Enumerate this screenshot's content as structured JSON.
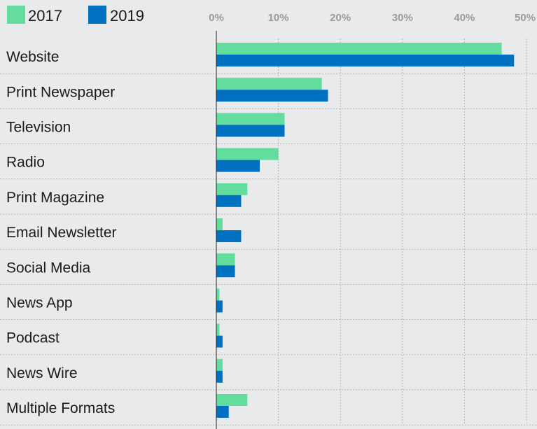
{
  "chart_data": {
    "type": "bar",
    "orientation": "horizontal",
    "categories": [
      "Website",
      "Print Newspaper",
      "Television",
      "Radio",
      "Print Magazine",
      "Email Newsletter",
      "Social Media",
      "News App",
      "Podcast",
      "News Wire",
      "Multiple Formats"
    ],
    "series": [
      {
        "name": "2017",
        "color": "#62dd9e",
        "values": [
          46,
          17,
          11,
          10,
          5,
          1,
          3,
          0.5,
          0.5,
          1,
          5
        ]
      },
      {
        "name": "2019",
        "color": "#0070c0",
        "values": [
          48,
          18,
          11,
          7,
          4,
          4,
          3,
          1,
          1,
          1,
          2
        ]
      }
    ],
    "x_ticks": [
      "0%",
      "10%",
      "20%",
      "30%",
      "40%",
      "50%"
    ],
    "xlim": [
      0,
      50
    ],
    "legend_position": "top-left",
    "grid": true
  }
}
